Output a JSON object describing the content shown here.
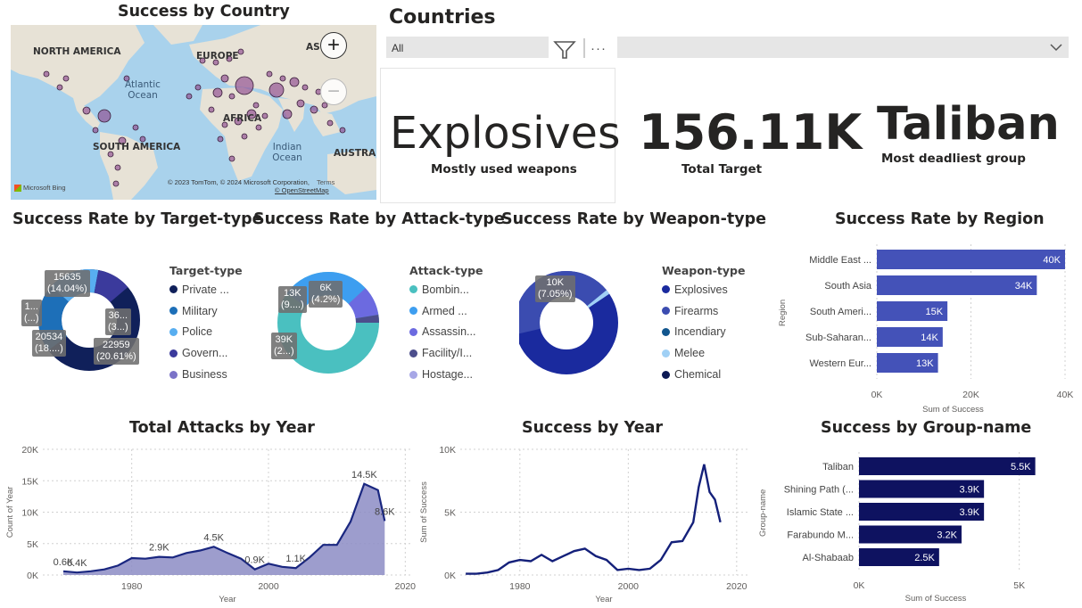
{
  "map": {
    "title": "Success by Country",
    "labels": {
      "north_america": "NORTH AMERICA",
      "europe": "EUROPE",
      "asia": "AS",
      "atlantic": "Atlantic\nOcean",
      "africa": "AFRICA",
      "south_america": "SOUTH AMERICA",
      "indian": "Indian\nOcean",
      "australia": "AUSTRAL"
    },
    "attribution": "© 2023 TomTom, © 2024 Microsoft Corporation,",
    "terms": "Terms",
    "osm": "© OpenStreetMap",
    "bing": "Microsoft Bing",
    "zoom_in": "+",
    "zoom_out": "−"
  },
  "slicer": {
    "title": "Countries",
    "value": "All",
    "more": "···"
  },
  "cards": {
    "weapon": {
      "value": "Explosives",
      "label": "Mostly used weapons"
    },
    "target": {
      "value": "156.11K",
      "label": "Total Target"
    },
    "group": {
      "value": "Taliban",
      "label": "Most deadliest group"
    }
  },
  "target_type": {
    "title": "Success Rate by Target-type",
    "legend_title": "Target-type",
    "legend": [
      {
        "label": "Private ...",
        "color": "#10205a"
      },
      {
        "label": "Military",
        "color": "#1d6fb8"
      },
      {
        "label": "Police",
        "color": "#58aef0"
      },
      {
        "label": "Govern...",
        "color": "#3b3a9c"
      },
      {
        "label": "Business",
        "color": "#7b73c8"
      }
    ],
    "tips": [
      {
        "l1": "15635",
        "l2": "(14.04%)"
      },
      {
        "l1": "1...",
        "l2": "(...)"
      },
      {
        "l1": "36...",
        "l2": "(3...)"
      },
      {
        "l1": "20534",
        "l2": "(18....)"
      },
      {
        "l1": "22959",
        "l2": "(20.61%)"
      }
    ]
  },
  "attack_type": {
    "title": "Success Rate by Attack-type",
    "legend_title": "Attack-type",
    "legend": [
      {
        "label": "Bombin...",
        "color": "#4ac0c0"
      },
      {
        "label": "Armed ...",
        "color": "#3d9ef0"
      },
      {
        "label": "Assassin...",
        "color": "#6c6ae0"
      },
      {
        "label": "Facility/I...",
        "color": "#4c4e8c"
      },
      {
        "label": "Hostage...",
        "color": "#a7a7e6"
      }
    ],
    "tips": [
      {
        "l1": "13K",
        "l2": "(9....)"
      },
      {
        "l1": "6K",
        "l2": "(4.2%)"
      },
      {
        "l1": "39K",
        "l2": "(2...)"
      }
    ]
  },
  "weapon_type": {
    "title": "Success Rate by Weapon-type",
    "legend_title": "Weapon-type",
    "legend": [
      {
        "label": "Explosives",
        "color": "#1a2a9e"
      },
      {
        "label": "Firearms",
        "color": "#3b4cb0"
      },
      {
        "label": "Incendiary",
        "color": "#11568e"
      },
      {
        "label": "Melee",
        "color": "#a0d0f5"
      },
      {
        "label": "Chemical",
        "color": "#0d1a55"
      }
    ],
    "tips": [
      {
        "l1": "10K",
        "l2": "(7.05%)"
      }
    ]
  },
  "region": {
    "title": "Success Rate by Region",
    "ylabel": "Region",
    "xlabel": "Sum of Success"
  },
  "group": {
    "title": "Success by Group-name",
    "ylabel": "Group-name",
    "xlabel": "Sum of Success"
  },
  "attacks_year": {
    "title": "Total Attacks by Year",
    "ylabel": "Count of Year",
    "xlabel": "Year"
  },
  "success_year": {
    "title": "Success by Year",
    "ylabel": "Sum of Success",
    "xlabel": "Year"
  },
  "chart_data": [
    {
      "id": "region",
      "type": "bar",
      "orientation": "horizontal",
      "title": "Success Rate by Region",
      "categories": [
        "Middle East ...",
        "South Asia",
        "South Ameri...",
        "Sub-Saharan...",
        "Western Eur..."
      ],
      "values": [
        40,
        34,
        15,
        14,
        13
      ],
      "data_labels": [
        "40K",
        "34K",
        "15K",
        "14K",
        "13K"
      ],
      "xticks": [
        "0K",
        "20K",
        "40K"
      ],
      "xlim": [
        0,
        40
      ],
      "color": "#4452b8",
      "xlabel": "Sum of Success",
      "ylabel": "Region"
    },
    {
      "id": "group",
      "type": "bar",
      "orientation": "horizontal",
      "title": "Success by Group-name",
      "categories": [
        "Taliban",
        "Shining Path (...",
        "Islamic State ...",
        "Farabundo M...",
        "Al-Shabaab"
      ],
      "values": [
        5.5,
        3.9,
        3.9,
        3.2,
        2.5
      ],
      "data_labels": [
        "5.5K",
        "3.9K",
        "3.9K",
        "3.2K",
        "2.5K"
      ],
      "xticks": [
        "0K",
        "5K"
      ],
      "xlim": [
        0,
        5.9
      ],
      "color": "#0e1260",
      "xlabel": "Sum of Success",
      "ylabel": "Group-name"
    },
    {
      "id": "attacks_year",
      "type": "area",
      "title": "Total Attacks by Year",
      "x": [
        1970,
        1972,
        1974,
        1976,
        1978,
        1980,
        1982,
        1984,
        1986,
        1988,
        1990,
        1992,
        1994,
        1996,
        1998,
        2000,
        2002,
        2004,
        2006,
        2008,
        2010,
        2012,
        2014,
        2016,
        2017
      ],
      "y": [
        0.6,
        0.4,
        0.6,
        0.9,
        1.5,
        2.7,
        2.6,
        2.9,
        2.8,
        3.5,
        3.9,
        4.5,
        3.5,
        2.6,
        0.9,
        1.8,
        1.3,
        1.1,
        2.8,
        4.8,
        4.8,
        8.5,
        14.5,
        13.5,
        8.6
      ],
      "annotations": [
        {
          "x": 1970,
          "y": 0.6,
          "text": "0.6K"
        },
        {
          "x": 1972,
          "y": 0.4,
          "text": "0.4K"
        },
        {
          "x": 1984,
          "y": 2.9,
          "text": "2.9K"
        },
        {
          "x": 1992,
          "y": 4.5,
          "text": "4.5K"
        },
        {
          "x": 1998,
          "y": 0.9,
          "text": "0.9K"
        },
        {
          "x": 2004,
          "y": 1.1,
          "text": "1.1K"
        },
        {
          "x": 2014,
          "y": 14.5,
          "text": "14.5K"
        },
        {
          "x": 2017,
          "y": 8.6,
          "text": "8.6K"
        }
      ],
      "yticks": [
        "0K",
        "5K",
        "10K",
        "15K",
        "20K"
      ],
      "ylim": [
        0,
        20
      ],
      "xticks": [
        "1980",
        "2000",
        "2020"
      ],
      "xlim": [
        1967,
        2021
      ],
      "xlabel": "Year",
      "ylabel": "Count of Year",
      "color": "#8c8cc4"
    },
    {
      "id": "success_year",
      "type": "line",
      "title": "Success by Year",
      "x": [
        1970,
        1972,
        1974,
        1976,
        1978,
        1980,
        1982,
        1984,
        1986,
        1988,
        1990,
        1992,
        1994,
        1996,
        1998,
        2000,
        2002,
        2004,
        2006,
        2008,
        2010,
        2012,
        2013,
        2014,
        2015,
        2016,
        2017
      ],
      "y": [
        0.1,
        0.1,
        0.2,
        0.4,
        1.0,
        1.2,
        1.1,
        1.6,
        1.1,
        1.5,
        1.9,
        2.1,
        1.5,
        1.2,
        0.4,
        0.5,
        0.4,
        0.5,
        1.2,
        2.6,
        2.7,
        4.2,
        7.0,
        8.8,
        6.6,
        6.0,
        4.2
      ],
      "yticks": [
        "0K",
        "5K",
        "10K"
      ],
      "ylim": [
        0,
        10
      ],
      "xticks": [
        "1980",
        "2000",
        "2020"
      ],
      "xlim": [
        1969,
        2022
      ],
      "xlabel": "Year",
      "ylabel": "Sum of Success",
      "color": "#14207a"
    },
    {
      "id": "target_type",
      "type": "pie",
      "donut": true,
      "title": "Success Rate by Target-type",
      "categories": [
        "Private ...",
        "Military",
        "Police",
        "Govern...",
        "Business"
      ],
      "values": [
        36,
        22959,
        20534,
        15635,
        12000
      ],
      "note": "labels partially truncated in source"
    },
    {
      "id": "attack_type",
      "type": "pie",
      "donut": true,
      "title": "Success Rate by Attack-type",
      "categories": [
        "Bombin...",
        "Armed ...",
        "Assassin...",
        "Facility/I...",
        "Hostage..."
      ],
      "values": [
        78,
        39,
        13,
        6,
        2
      ]
    },
    {
      "id": "weapon_type",
      "type": "pie",
      "donut": true,
      "title": "Success Rate by Weapon-type",
      "categories": [
        "Explosives",
        "Firearms",
        "Incendiary",
        "Melee",
        "Chemical"
      ],
      "values": [
        55,
        41,
        1.5,
        1.5,
        1
      ]
    }
  ]
}
